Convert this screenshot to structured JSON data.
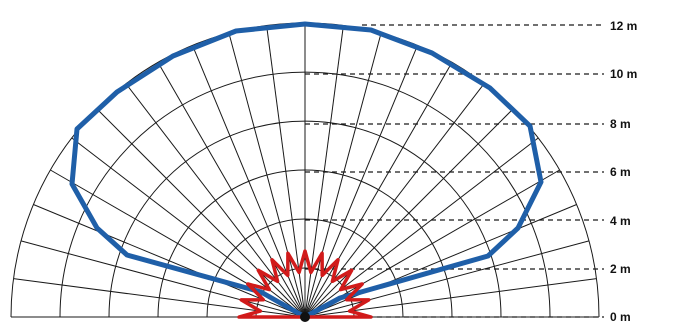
{
  "diagram": {
    "distance_labels": [
      "0 m",
      "2 m",
      "4 m",
      "6 m",
      "8 m",
      "10 m",
      "12 m"
    ],
    "colors": {
      "grid": "#1a1a1a",
      "long_range_zone": "#1f5fa8",
      "short_range_zone": "#d11a1a",
      "sensor": "#111111"
    }
  }
}
